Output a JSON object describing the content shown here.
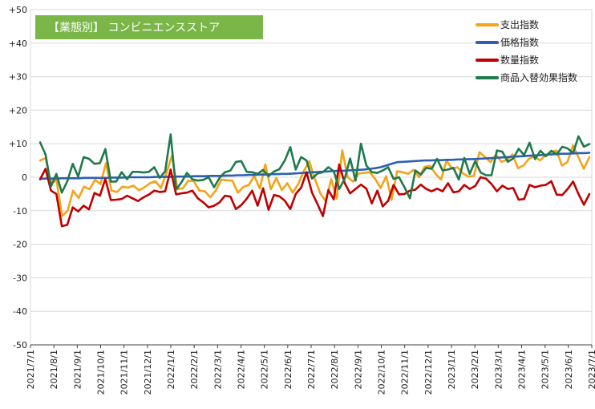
{
  "chart_data": {
    "type": "line",
    "title": "【業態別】 コンビニエンスストア",
    "colors": {
      "title_bg": "#7ab648",
      "grid": "#d9d9d9",
      "axis": "#404040"
    },
    "ylim": [
      -50,
      50
    ],
    "y_ticks": [
      "+50",
      "+40",
      "+30",
      "+20",
      "+10",
      "0",
      "-10",
      "-20",
      "-30",
      "-40",
      "-50"
    ],
    "x_tick_labels": [
      "2021/7/1",
      "2021/8/1",
      "2021/9/1",
      "2021/10/1",
      "2021/11/1",
      "2021/12/1",
      "2022/1/1",
      "2022/2/1",
      "2022/3/1",
      "2022/4/1",
      "2022/5/1",
      "2022/6/1",
      "2022/7/1",
      "2022/8/1",
      "2022/9/1",
      "2022/10/1",
      "2022/11/1",
      "2022/12/1",
      "2023/1/1",
      "2023/2/1",
      "2023/3/1",
      "2023/4/1",
      "2023/5/1",
      "2023/6/1",
      "2023/7/1"
    ],
    "legend_position": "top-right",
    "series": [
      {
        "name": "支出指数",
        "color": "#f5a31a",
        "values": [
          5.0,
          5.7,
          -1.8,
          -0.9,
          -11.6,
          -10.0,
          -4.0,
          -6.2,
          -2.8,
          -3.6,
          -0.8,
          -2.0,
          4.2,
          -4.0,
          -4.4,
          -2.8,
          -3.1,
          -2.5,
          -3.9,
          -3.0,
          -1.8,
          -1.2,
          -3.2,
          1.3,
          6.5,
          -3.5,
          -3.3,
          -1.0,
          -1.2,
          -4.0,
          -4.2,
          -6.0,
          -3.9,
          -0.7,
          -0.9,
          -1.0,
          -4.6,
          -2.9,
          -2.3,
          0.4,
          -3.4,
          3.8,
          -3.6,
          -0.2,
          -3.8,
          -1.8,
          -4.6,
          -2.0,
          1.8,
          4.8,
          -0.4,
          -4.8,
          -7.1,
          -0.6,
          -6.4,
          8.0,
          0.0,
          -1.3,
          1.1,
          1.3,
          1.5,
          -0.5,
          -3.2,
          0.3,
          -6.7,
          1.8,
          1.5,
          1.0,
          2.2,
          0.0,
          3.1,
          3.4,
          1.0,
          -0.7,
          5.0,
          2.5,
          3.0,
          1.1,
          0.2,
          0.4,
          7.5,
          6.0,
          4.5,
          6.8,
          4.6,
          5.2,
          6.8,
          2.7,
          3.5,
          5.5,
          6.3,
          5.0,
          6.5,
          7.5,
          8.0,
          3.5,
          4.5,
          9.5,
          6.0,
          2.5,
          6.0
        ]
      },
      {
        "name": "価格指数",
        "color": "#2e5db8",
        "values": [
          -0.5,
          -0.4,
          -0.4,
          -0.4,
          -0.3,
          -0.3,
          -0.3,
          -0.3,
          -0.2,
          -0.2,
          -0.2,
          -0.2,
          -0.2,
          -0.1,
          -0.1,
          -0.1,
          0.0,
          0.0,
          0.0,
          0.0,
          0.0,
          0.1,
          0.1,
          0.1,
          0.1,
          0.2,
          0.2,
          0.2,
          0.3,
          0.3,
          0.3,
          0.4,
          0.4,
          0.4,
          0.5,
          0.5,
          0.6,
          0.6,
          0.7,
          0.7,
          0.8,
          0.8,
          0.9,
          0.9,
          1.0,
          1.0,
          1.1,
          1.2,
          1.3,
          1.4,
          1.5,
          1.6,
          1.7,
          1.8,
          1.9,
          1.9,
          2.0,
          2.1,
          2.2,
          2.3,
          2.5,
          2.7,
          3.0,
          3.5,
          4.0,
          4.5,
          4.6,
          4.7,
          4.8,
          4.9,
          5.0,
          5.0,
          5.1,
          5.1,
          5.2,
          5.2,
          5.3,
          5.3,
          5.4,
          5.4,
          5.5,
          5.6,
          5.7,
          5.8,
          5.9,
          6.0,
          6.1,
          6.2,
          6.3,
          6.4,
          6.5,
          6.6,
          6.7,
          6.8,
          6.9,
          7.0,
          7.0,
          7.1,
          7.2,
          7.2,
          7.3
        ]
      },
      {
        "name": "数量指数",
        "color": "#c00000",
        "values": [
          -0.6,
          2.5,
          -4.0,
          -5.0,
          -14.6,
          -14.2,
          -9.0,
          -10.2,
          -8.5,
          -9.6,
          -4.7,
          -5.5,
          -0.5,
          -6.8,
          -6.7,
          -6.5,
          -5.5,
          -6.3,
          -7.1,
          -6.0,
          -5.2,
          -4.0,
          -4.4,
          -4.2,
          2.3,
          -5.1,
          -4.8,
          -4.6,
          -4.0,
          -6.3,
          -7.5,
          -9.0,
          -8.5,
          -7.5,
          -5.5,
          -5.8,
          -9.5,
          -8.3,
          -6.4,
          -4.0,
          -8.5,
          -3.3,
          -9.7,
          -5.3,
          -5.7,
          -7.0,
          -9.5,
          -5.0,
          -3.1,
          1.5,
          -4.6,
          -8.0,
          -11.6,
          -3.8,
          -6.6,
          3.8,
          -1.7,
          -4.8,
          -3.5,
          -2.2,
          -3.4,
          -7.8,
          -4.0,
          -8.7,
          -7.0,
          -2.3,
          -5.1,
          -5.0,
          -4.0,
          -3.7,
          -2.2,
          -3.5,
          -4.2,
          -3.4,
          -4.2,
          -1.8,
          -4.5,
          -4.2,
          -2.3,
          -3.5,
          -2.6,
          0.0,
          -0.4,
          -2.0,
          -4.2,
          -2.5,
          -3.5,
          -3.2,
          -6.7,
          -6.5,
          -2.3,
          -3.0,
          -2.5,
          -2.3,
          -1.2,
          -5.2,
          -5.3,
          -3.5,
          -1.3,
          -5.0,
          -8.2,
          -5.0
        ]
      },
      {
        "name": "商品入替効果指数",
        "color": "#1f7a4a",
        "values": [
          10.4,
          6.8,
          -2.7,
          1.0,
          -4.6,
          -1.2,
          4.0,
          0.2,
          6.0,
          5.5,
          4.0,
          4.2,
          8.4,
          -1.3,
          -1.3,
          1.5,
          -0.6,
          1.6,
          1.6,
          1.4,
          1.6,
          3.0,
          -0.2,
          1.8,
          12.8,
          -3.7,
          -1.5,
          1.3,
          -0.6,
          -1.0,
          -0.8,
          0.0,
          -3.0,
          -0.2,
          1.5,
          2.0,
          4.6,
          4.8,
          1.6,
          1.5,
          1.0,
          2.2,
          0.3,
          1.7,
          2.4,
          5.0,
          9.0,
          2.3,
          6.0,
          5.0,
          -0.4,
          1.1,
          1.5,
          3.0,
          1.8,
          -3.5,
          -0.5,
          5.6,
          -1.0,
          10.0,
          3.5,
          1.5,
          1.3,
          2.0,
          3.0,
          -0.5,
          0.0,
          -3.0,
          -6.3,
          2.0,
          0.8,
          2.8,
          2.5,
          5.5,
          2.0,
          2.3,
          2.8,
          -0.7,
          5.8,
          1.0,
          4.8,
          1.4,
          0.6,
          0.6,
          8.0,
          7.6,
          4.6,
          5.6,
          8.5,
          6.6,
          10.3,
          5.4,
          7.9,
          6.3,
          7.9,
          6.8,
          9.1,
          8.6,
          7.2,
          12.2,
          9.1,
          9.9
        ]
      }
    ]
  }
}
